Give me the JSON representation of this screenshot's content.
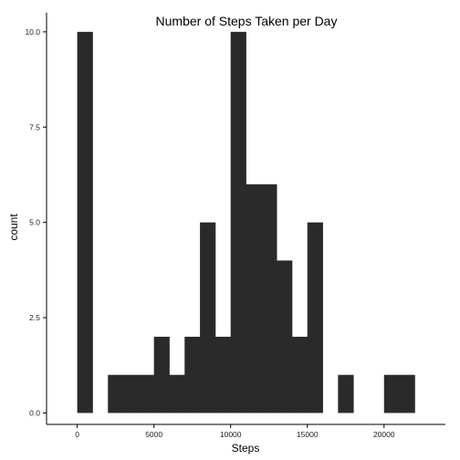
{
  "chart_data": {
    "type": "bar",
    "title": "Number of Steps Taken per Day",
    "xlabel": "Steps",
    "ylabel": "count",
    "xlim": [
      -2000,
      24000
    ],
    "ylim": [
      -0.3,
      10.5
    ],
    "x_ticks": [
      0,
      5000,
      10000,
      15000,
      20000
    ],
    "x_tick_labels": [
      "0",
      "5000",
      "10000",
      "15000",
      "20000"
    ],
    "y_ticks": [
      0,
      2.5,
      5,
      7.5,
      10
    ],
    "y_tick_labels": [
      "0.0",
      "2.5",
      "5.0",
      "7.5",
      "10.0"
    ],
    "bin_width": 1000,
    "bins": [
      {
        "start": 0,
        "end": 1000,
        "count": 10
      },
      {
        "start": 2000,
        "end": 3000,
        "count": 1
      },
      {
        "start": 3000,
        "end": 4000,
        "count": 1
      },
      {
        "start": 4000,
        "end": 5000,
        "count": 1
      },
      {
        "start": 5000,
        "end": 6000,
        "count": 2
      },
      {
        "start": 6000,
        "end": 7000,
        "count": 1
      },
      {
        "start": 7000,
        "end": 8000,
        "count": 2
      },
      {
        "start": 8000,
        "end": 9000,
        "count": 5
      },
      {
        "start": 9000,
        "end": 10000,
        "count": 2
      },
      {
        "start": 10000,
        "end": 11000,
        "count": 10
      },
      {
        "start": 11000,
        "end": 12000,
        "count": 6
      },
      {
        "start": 12000,
        "end": 13000,
        "count": 6
      },
      {
        "start": 13000,
        "end": 14000,
        "count": 4
      },
      {
        "start": 14000,
        "end": 15000,
        "count": 2
      },
      {
        "start": 15000,
        "end": 16000,
        "count": 5
      },
      {
        "start": 17000,
        "end": 18000,
        "count": 1
      },
      {
        "start": 20000,
        "end": 21000,
        "count": 1
      },
      {
        "start": 21000,
        "end": 22000,
        "count": 1
      }
    ],
    "bar_color": "#2a2a2a",
    "grid": false,
    "legend": "none"
  }
}
